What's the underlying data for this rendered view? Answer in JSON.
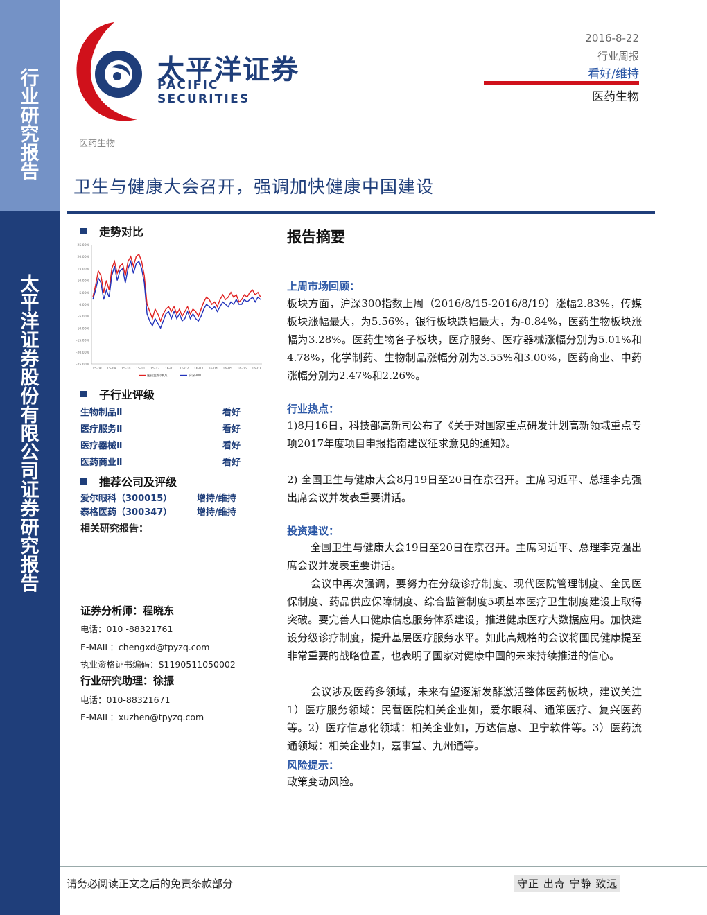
{
  "sidebar": {
    "report_type": "行业研究报告",
    "company": "太平洋证券股份有限公司证券研究报告"
  },
  "logo": {
    "cn": "太平洋证券",
    "en": "PACIFIC SECURITIES"
  },
  "header": {
    "date": "2016-8-22",
    "type": "行业周报",
    "rating": "看好/维持",
    "industry": "医药生物"
  },
  "sector_label": "医药生物",
  "title": "卫生与健康大会召开，强调加快健康中国建设",
  "left": {
    "trend_heading": "走势对比",
    "sub_heading": "子行业评级",
    "sub_ratings": [
      {
        "name": "生物制品Ⅱ",
        "rating": "看好"
      },
      {
        "name": "医疗服务Ⅱ",
        "rating": "看好"
      },
      {
        "name": "医疗器械Ⅱ",
        "rating": "看好"
      },
      {
        "name": "医药商业Ⅱ",
        "rating": "看好"
      }
    ],
    "rec_heading": "推荐公司及评级",
    "companies": [
      {
        "name": "爱尔眼科（300015）",
        "rating": "增持/维持"
      },
      {
        "name": "泰格医药（300347）",
        "rating": "增持/维持"
      }
    ],
    "related": "相关研究报告：",
    "analyst": "证券分析师：程晓东",
    "analyst_tel": "电话：010 -88321761",
    "analyst_email": "E-MAIL：chengxd@tpyzq.com",
    "analyst_cert": "执业资格证书编码：S1190511050002",
    "assistant": "行业研究助理：徐振",
    "assistant_tel": "电话：010-88321671",
    "assistant_email": "E-MAIL：xuzhen@tpyzq.com"
  },
  "chart_data": {
    "type": "line",
    "y_ticks": [
      "25.00%",
      "20.00%",
      "15.00%",
      "10.00%",
      "5.00%",
      "0.00%",
      "-5.00%",
      "-10.00%",
      "-15.00%",
      "-20.00%",
      "-25.00%"
    ],
    "x_ticks": [
      "15-08",
      "15-09",
      "15-10",
      "15-11",
      "15-12",
      "16-01",
      "16-02",
      "16-03",
      "16-04",
      "16-05",
      "16-06",
      "16-07"
    ],
    "ylim": [
      -25,
      25
    ],
    "legend": "bottom",
    "series": [
      {
        "name": "医药生物(申万)",
        "color": "#e02020",
        "values": [
          3,
          8,
          14,
          12,
          5,
          10,
          6,
          15,
          18,
          13,
          16,
          17,
          12,
          18,
          20,
          16,
          20,
          21,
          18,
          12,
          0,
          -3,
          -6,
          -2,
          -4,
          -7,
          -4,
          -2,
          -1,
          -3,
          -1,
          -4,
          -2,
          -5,
          -3,
          -1,
          -4,
          -2,
          -3,
          -5,
          -2,
          1,
          3,
          2,
          0,
          1,
          -1,
          2,
          4,
          2,
          3,
          5,
          3,
          4,
          1,
          2,
          4,
          3,
          5,
          6,
          4,
          5,
          3
        ]
      },
      {
        "name": "沪深300",
        "color": "#2233bb",
        "values": [
          2,
          6,
          11,
          9,
          2,
          6,
          3,
          12,
          16,
          10,
          14,
          15,
          9,
          15,
          18,
          13,
          17,
          18,
          15,
          9,
          -4,
          -7,
          -9,
          -6,
          -8,
          -10,
          -7,
          -4,
          -3,
          -6,
          -3,
          -6,
          -4,
          -7,
          -6,
          -3,
          -6,
          -4,
          -6,
          -7,
          -5,
          -2,
          0,
          -1,
          -2,
          -1,
          -3,
          -1,
          1,
          0,
          -1,
          1,
          0,
          2,
          0,
          0,
          2,
          1,
          2,
          3,
          1,
          3,
          2
        ]
      }
    ]
  },
  "summary": {
    "title": "报告摘要",
    "market_h": "上周市场回顾：",
    "market_p": "板块方面，沪深300指数上周（2016/8/15-2016/8/19）涨幅2.83%，传媒板块涨幅最大，为5.56%，银行板块跌幅最大，为-0.84%，医药生物板块涨幅为3.28%。医药生物各子板块，医疗服务、医疗器械涨幅分别为5.01%和4.78%，化学制药、生物制品涨幅分别为3.55%和3.00%，医药商业、中药涨幅分别为2.47%和2.26%。",
    "hot_h": "行业热点：",
    "hot_p1": "1)8月16日，科技部高新司公布了《关于对国家重点研发计划高新领域重点专项2017年度项目申报指南建议征求意见的通知》。",
    "hot_p2": "2) 全国卫生与健康大会8月19日至20日在京召开。主席习近平、总理李克强出席会议并发表重要讲话。",
    "inv_h": "投资建议：",
    "inv_p1": "全国卫生与健康大会19日至20日在京召开。主席习近平、总理李克强出席会议并发表重要讲话。",
    "inv_p2": "会议中再次强调，要努力在分级诊疗制度、现代医院管理制度、全民医保制度、药品供应保障制度、综合监管制度5项基本医疗卫生制度建设上取得突破。要完善人口健康信息服务体系建设，推进健康医疗大数据应用。加快建设分级诊疗制度，提升基层医疗服务水平。如此高规格的会议将国民健康提至非常重要的战略位置，也表明了国家对健康中国的未来持续推进的信心。",
    "inv_p3": "会议涉及医药多领域，未来有望逐渐发酵激活整体医药板块，建议关注1）医疗服务领域：民营医院相关企业如，爱尔眼科、通策医疗、复兴医药等。2）医疗信息化领域：相关企业如，万达信息、卫宁软件等。3）医药流通领域：相关企业如，嘉事堂、九州通等。",
    "risk_h": "风险提示：",
    "risk_p": "政策变动风险。"
  },
  "footer": {
    "disclaimer": "请务必阅读正文之后的免责条款部分",
    "motto": "守正 出奇 宁静 致远"
  }
}
